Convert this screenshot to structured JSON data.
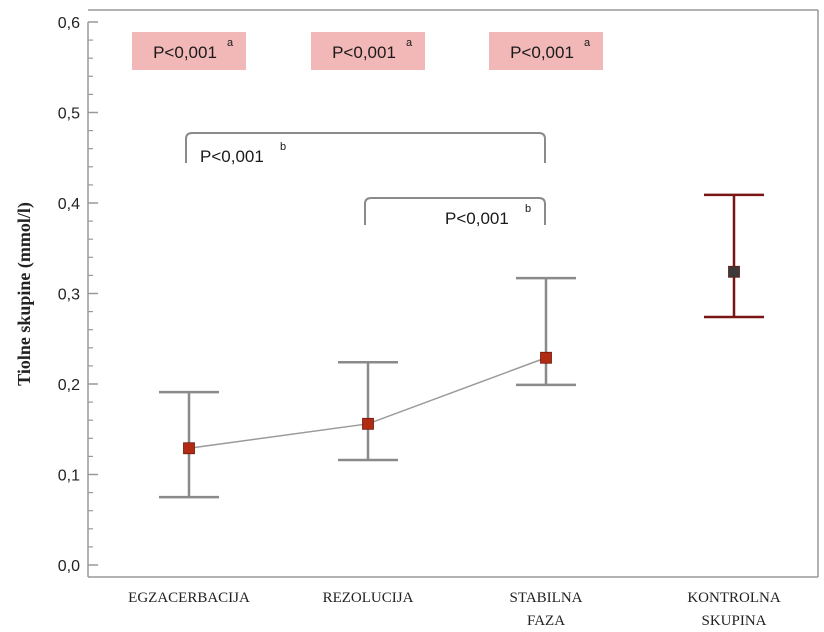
{
  "chart_data": {
    "type": "scatter",
    "ylabel": "Tiolne skupine (mmol/l)",
    "xlabel": "",
    "ylim": [
      0,
      0.6
    ],
    "yticks": [
      {
        "value": 0.0,
        "label": "0,0"
      },
      {
        "value": 0.1,
        "label": "0,1"
      },
      {
        "value": 0.2,
        "label": "0,2"
      },
      {
        "value": 0.3,
        "label": "0,3"
      },
      {
        "value": 0.4,
        "label": "0,4"
      },
      {
        "value": 0.5,
        "label": "0,5"
      },
      {
        "value": 0.6,
        "label": "0,6"
      }
    ],
    "categories": [
      [
        "EGZACERBACIJA"
      ],
      [
        "REZOLUCIJA"
      ],
      [
        "STABILNA",
        "FAZA"
      ],
      [
        "KONTROLNA",
        "SKUPINA"
      ]
    ],
    "series": [
      {
        "points": [
          {
            "category": 0,
            "mean": 0.129,
            "lower": 0.075,
            "upper": 0.191
          },
          {
            "category": 1,
            "mean": 0.156,
            "lower": 0.116,
            "upper": 0.224
          },
          {
            "category": 2,
            "mean": 0.229,
            "lower": 0.199,
            "upper": 0.317
          }
        ],
        "connected": true,
        "marker_color": "#b22a12",
        "errorbar_color": "#8a8a8a"
      },
      {
        "points": [
          {
            "category": 3,
            "mean": 0.324,
            "lower": 0.274,
            "upper": 0.409
          }
        ],
        "connected": false,
        "marker_color": "#3a3a3a",
        "errorbar_color": "#7a1515"
      }
    ],
    "annotations": [
      {
        "text": "P<0,001",
        "sup": "a",
        "category": 0,
        "style": "box"
      },
      {
        "text": "P<0,001",
        "sup": "a",
        "category": 1,
        "style": "box"
      },
      {
        "text": "P<0,001",
        "sup": "a",
        "category": 2,
        "style": "box"
      },
      {
        "text": "P<0,001",
        "sup": "b",
        "from": 0,
        "to": 2,
        "style": "bracket"
      },
      {
        "text": "P<0,001",
        "sup": "b",
        "from": 1,
        "to": 2,
        "style": "bracket"
      }
    ],
    "colors": {
      "box_fill": "#f2b7b7",
      "bracket": "#8a8a8a",
      "axis": "#999999",
      "line": "#9a9a9a"
    }
  }
}
